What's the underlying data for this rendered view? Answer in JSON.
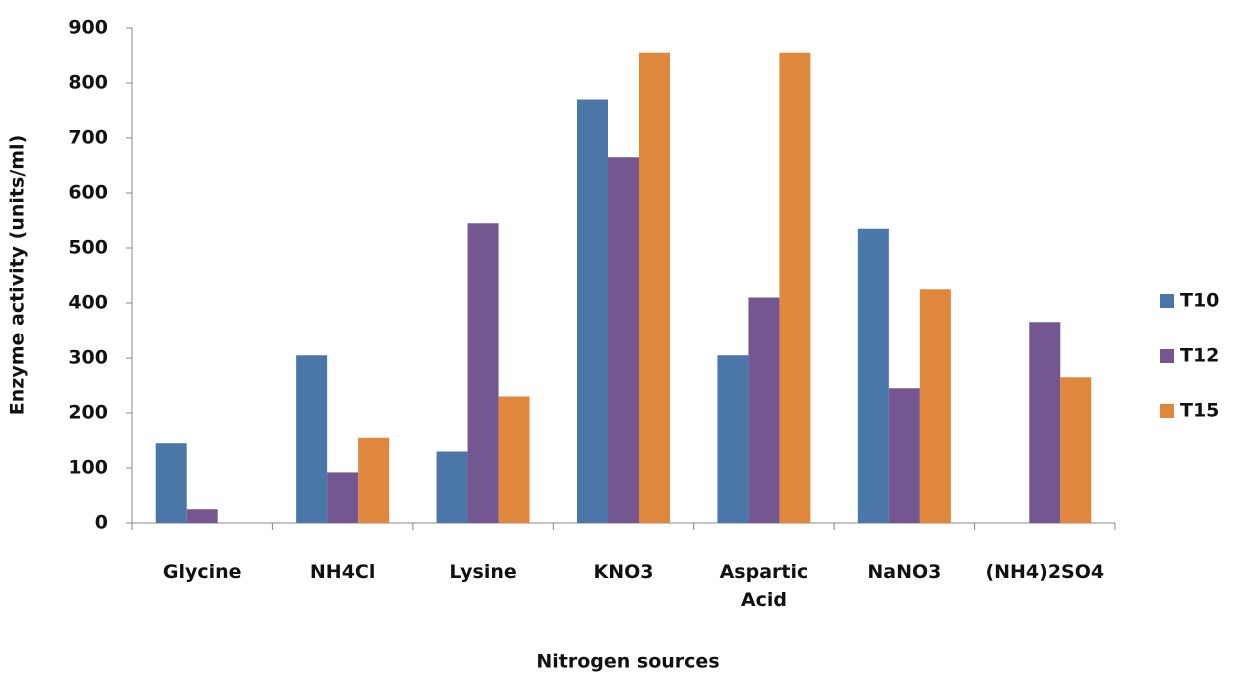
{
  "chart_data": {
    "type": "bar",
    "x_label": "Nitrogen sources",
    "y_label": "Enzyme activity (units/ml)",
    "categories": [
      "Glycine",
      "NH4Cl",
      "Lysine",
      "KNO3",
      "Aspartic Acid",
      "NaNO3",
      "(NH4)2SO4"
    ],
    "series": [
      {
        "name": "T10",
        "color": "#4a76a8",
        "values": [
          145,
          305,
          130,
          770,
          305,
          535,
          0
        ]
      },
      {
        "name": "T12",
        "color": "#745791",
        "values": [
          25,
          92,
          545,
          665,
          410,
          245,
          365
        ]
      },
      {
        "name": "T15",
        "color": "#e0873e",
        "values": [
          0,
          155,
          230,
          855,
          855,
          425,
          265
        ]
      }
    ],
    "ylim": [
      0,
      900
    ],
    "yticks": [
      0,
      100,
      200,
      300,
      400,
      500,
      600,
      700,
      800,
      900
    ],
    "grid": false,
    "legend": "right"
  }
}
